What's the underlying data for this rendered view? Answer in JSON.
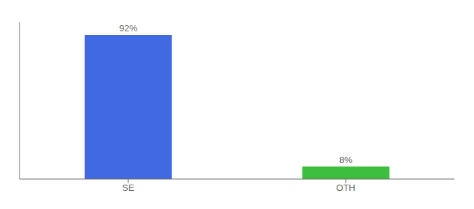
{
  "chart_data": {
    "type": "bar",
    "categories": [
      "SE",
      "OTH"
    ],
    "values": [
      92,
      8
    ],
    "value_labels": [
      "92%",
      "8%"
    ],
    "colors": [
      "#4169e1",
      "#3dbf3d"
    ],
    "ylim": [
      0,
      100
    ],
    "data_labels": true,
    "tick_labels": "x",
    "grid": false
  }
}
